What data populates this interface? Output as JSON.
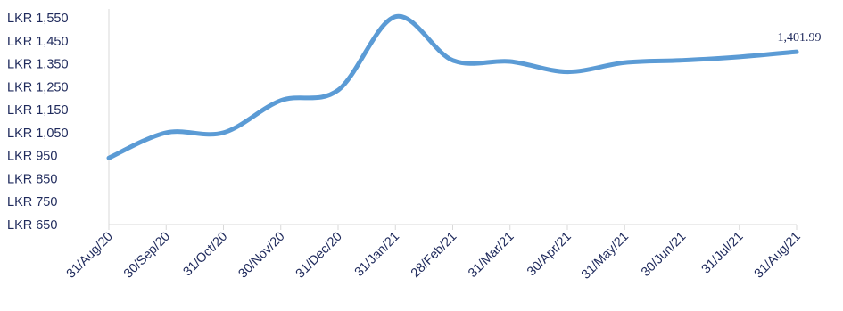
{
  "chart_data": {
    "type": "line",
    "categories": [
      "31/Aug/20",
      "30/Sep/20",
      "31/Oct/20",
      "30/Nov/20",
      "31/Dec/20",
      "31/Jan/21",
      "28/Feb/21",
      "31/Mar/21",
      "30/Apr/21",
      "31/May/21",
      "30/Jun/21",
      "31/Jul/21",
      "31/Aug/21"
    ],
    "series": [
      {
        "values": [
          940,
          1050,
          1050,
          1190,
          1235,
          1555,
          1365,
          1360,
          1315,
          1355,
          1365,
          1380,
          1401.99
        ]
      }
    ],
    "ylim": [
      650,
      1550
    ],
    "yticks": [
      650,
      750,
      850,
      950,
      1050,
      1150,
      1250,
      1350,
      1450,
      1550
    ],
    "ytick_labels": [
      "LKR 650",
      "LKR 750",
      "LKR 850",
      "LKR 950",
      "LKR 1,050",
      "LKR 1,150",
      "LKR 1,250",
      "LKR 1,350",
      "LKR 1,450",
      "LKR 1,550"
    ],
    "data_label": "1,401.99",
    "title": "",
    "xlabel": "",
    "ylabel": "",
    "grid": false,
    "line_color": "#5b9bd5",
    "text_color": "#1f2a5c",
    "axis_color": "#d9d9d9"
  }
}
